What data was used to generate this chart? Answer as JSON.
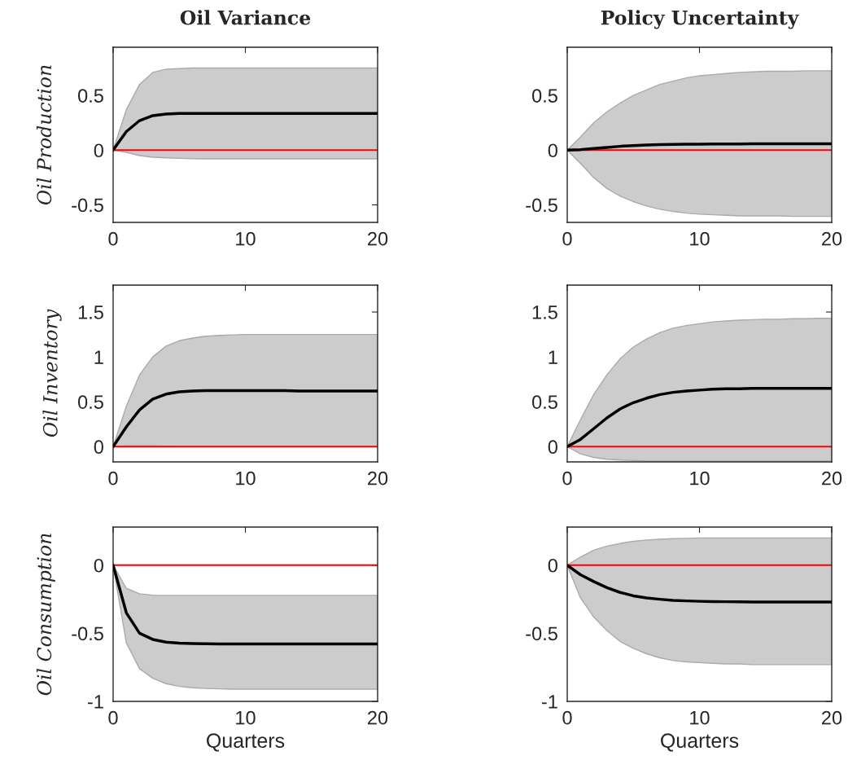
{
  "chart_data": [
    {
      "type": "line",
      "title": "Oil Variance",
      "ylabel": "Oil Production",
      "x": [
        0,
        1,
        2,
        3,
        4,
        5,
        6,
        7,
        8,
        9,
        10,
        11,
        12,
        13,
        14,
        15,
        16,
        17,
        18,
        19,
        20
      ],
      "xlim": [
        0,
        20
      ],
      "xticks": [
        0,
        10,
        20
      ],
      "ylim": [
        -0.66,
        0.94
      ],
      "yticks": [
        -0.5,
        0,
        0.5
      ],
      "series": [
        {
          "color": "#000000",
          "values": [
            0,
            0.17,
            0.27,
            0.315,
            0.33,
            0.335,
            0.335,
            0.335,
            0.335,
            0.335,
            0.335,
            0.335,
            0.335,
            0.335,
            0.335,
            0.335,
            0.335,
            0.335,
            0.335,
            0.335,
            0.335
          ],
          "upper": [
            0,
            0.37,
            0.6,
            0.71,
            0.74,
            0.745,
            0.75,
            0.75,
            0.75,
            0.75,
            0.75,
            0.75,
            0.75,
            0.75,
            0.75,
            0.75,
            0.75,
            0.75,
            0.75,
            0.75,
            0.75
          ],
          "lower": [
            0,
            -0.02,
            -0.05,
            -0.065,
            -0.07,
            -0.075,
            -0.078,
            -0.08,
            -0.08,
            -0.08,
            -0.08,
            -0.08,
            -0.08,
            -0.08,
            -0.08,
            -0.08,
            -0.08,
            -0.08,
            -0.08,
            -0.08,
            -0.08
          ]
        }
      ],
      "ref_lines": [
        {
          "axis": "y",
          "value": 0,
          "color": "#ff0000"
        }
      ]
    },
    {
      "type": "line",
      "title": "Policy Uncertainty",
      "x": [
        0,
        1,
        2,
        3,
        4,
        5,
        6,
        7,
        8,
        9,
        10,
        11,
        12,
        13,
        14,
        15,
        16,
        17,
        18,
        19,
        20
      ],
      "xlim": [
        0,
        20
      ],
      "xticks": [
        0,
        10,
        20
      ],
      "ylim": [
        -0.66,
        0.94
      ],
      "yticks": [
        -0.5,
        0,
        0.5
      ],
      "series": [
        {
          "color": "#000000",
          "values": [
            0,
            0.005,
            0.015,
            0.025,
            0.035,
            0.042,
            0.047,
            0.05,
            0.052,
            0.054,
            0.055,
            0.056,
            0.057,
            0.057,
            0.058,
            0.058,
            0.058,
            0.058,
            0.058,
            0.058,
            0.058
          ],
          "upper": [
            0,
            0.12,
            0.25,
            0.35,
            0.43,
            0.5,
            0.55,
            0.6,
            0.63,
            0.66,
            0.68,
            0.69,
            0.7,
            0.71,
            0.715,
            0.72,
            0.72,
            0.72,
            0.725,
            0.725,
            0.725
          ],
          "lower": [
            0,
            -0.12,
            -0.25,
            -0.35,
            -0.42,
            -0.47,
            -0.51,
            -0.54,
            -0.56,
            -0.575,
            -0.585,
            -0.59,
            -0.595,
            -0.6,
            -0.6,
            -0.6,
            -0.6,
            -0.605,
            -0.605,
            -0.605,
            -0.605
          ]
        }
      ],
      "ref_lines": [
        {
          "axis": "y",
          "value": 0,
          "color": "#ff0000"
        }
      ]
    },
    {
      "type": "line",
      "ylabel": "Oil Inventory",
      "x": [
        0,
        1,
        2,
        3,
        4,
        5,
        6,
        7,
        8,
        9,
        10,
        11,
        12,
        13,
        14,
        15,
        16,
        17,
        18,
        19,
        20
      ],
      "xlim": [
        0,
        20
      ],
      "xticks": [
        0,
        10,
        20
      ],
      "ylim": [
        -0.17,
        1.8
      ],
      "yticks": [
        0,
        0.5,
        1,
        1.5
      ],
      "series": [
        {
          "color": "#000000",
          "values": [
            0,
            0.22,
            0.41,
            0.53,
            0.585,
            0.61,
            0.62,
            0.625,
            0.625,
            0.625,
            0.625,
            0.625,
            0.625,
            0.625,
            0.62,
            0.62,
            0.62,
            0.62,
            0.62,
            0.62,
            0.62
          ],
          "upper": [
            0,
            0.45,
            0.8,
            1.0,
            1.12,
            1.18,
            1.21,
            1.23,
            1.24,
            1.245,
            1.25,
            1.25,
            1.25,
            1.25,
            1.25,
            1.25,
            1.25,
            1.25,
            1.25,
            1.25,
            1.25
          ],
          "lower": [
            0,
            0.01,
            0.01,
            0.01,
            0.005,
            0,
            0,
            0,
            0,
            0,
            0,
            0,
            0,
            0,
            0,
            0,
            0,
            0,
            0,
            0,
            0
          ]
        }
      ],
      "ref_lines": [
        {
          "axis": "y",
          "value": 0,
          "color": "#ff0000"
        }
      ]
    },
    {
      "type": "line",
      "x": [
        0,
        1,
        2,
        3,
        4,
        5,
        6,
        7,
        8,
        9,
        10,
        11,
        12,
        13,
        14,
        15,
        16,
        17,
        18,
        19,
        20
      ],
      "xlim": [
        0,
        20
      ],
      "xticks": [
        0,
        10,
        20
      ],
      "ylim": [
        -0.17,
        1.8
      ],
      "yticks": [
        0,
        0.5,
        1,
        1.5
      ],
      "series": [
        {
          "color": "#000000",
          "values": [
            0,
            0.08,
            0.2,
            0.32,
            0.42,
            0.49,
            0.54,
            0.58,
            0.605,
            0.62,
            0.63,
            0.64,
            0.645,
            0.645,
            0.65,
            0.65,
            0.65,
            0.65,
            0.65,
            0.65,
            0.65
          ],
          "upper": [
            0,
            0.3,
            0.58,
            0.8,
            0.98,
            1.11,
            1.2,
            1.27,
            1.32,
            1.35,
            1.37,
            1.39,
            1.4,
            1.41,
            1.415,
            1.42,
            1.42,
            1.425,
            1.425,
            1.43,
            1.43
          ],
          "lower": [
            0,
            -0.08,
            -0.12,
            -0.14,
            -0.15,
            -0.155,
            -0.16,
            -0.16,
            -0.16,
            -0.16,
            -0.16,
            -0.16,
            -0.16,
            -0.16,
            -0.16,
            -0.16,
            -0.16,
            -0.16,
            -0.16,
            -0.16,
            -0.16
          ]
        }
      ],
      "ref_lines": [
        {
          "axis": "y",
          "value": 0,
          "color": "#ff0000"
        }
      ]
    },
    {
      "type": "line",
      "ylabel": "Oil Consumption",
      "xlabel": "Quarters",
      "x": [
        0,
        1,
        2,
        3,
        4,
        5,
        6,
        7,
        8,
        9,
        10,
        11,
        12,
        13,
        14,
        15,
        16,
        17,
        18,
        19,
        20
      ],
      "xlim": [
        0,
        20
      ],
      "xticks": [
        0,
        10,
        20
      ],
      "ylim": [
        -1,
        0.28
      ],
      "yticks": [
        -1,
        -0.5,
        0
      ],
      "series": [
        {
          "color": "#000000",
          "values": [
            0,
            -0.35,
            -0.5,
            -0.545,
            -0.565,
            -0.572,
            -0.575,
            -0.577,
            -0.578,
            -0.578,
            -0.578,
            -0.578,
            -0.578,
            -0.578,
            -0.578,
            -0.578,
            -0.578,
            -0.578,
            -0.578,
            -0.578,
            -0.578
          ],
          "upper": [
            0,
            -0.17,
            -0.21,
            -0.22,
            -0.222,
            -0.222,
            -0.222,
            -0.222,
            -0.222,
            -0.222,
            -0.222,
            -0.222,
            -0.222,
            -0.222,
            -0.222,
            -0.222,
            -0.222,
            -0.222,
            -0.222,
            -0.222,
            -0.222
          ],
          "lower": [
            0,
            -0.57,
            -0.76,
            -0.83,
            -0.87,
            -0.89,
            -0.9,
            -0.905,
            -0.908,
            -0.91,
            -0.91,
            -0.91,
            -0.91,
            -0.91,
            -0.91,
            -0.91,
            -0.91,
            -0.91,
            -0.91,
            -0.91,
            -0.91
          ]
        }
      ],
      "ref_lines": [
        {
          "axis": "y",
          "value": 0,
          "color": "#ff0000"
        }
      ]
    },
    {
      "type": "line",
      "xlabel": "Quarters",
      "x": [
        0,
        1,
        2,
        3,
        4,
        5,
        6,
        7,
        8,
        9,
        10,
        11,
        12,
        13,
        14,
        15,
        16,
        17,
        18,
        19,
        20
      ],
      "xlim": [
        0,
        20
      ],
      "xticks": [
        0,
        10,
        20
      ],
      "ylim": [
        -1,
        0.28
      ],
      "yticks": [
        -1,
        -0.5,
        0
      ],
      "series": [
        {
          "color": "#000000",
          "values": [
            0,
            -0.07,
            -0.12,
            -0.165,
            -0.2,
            -0.225,
            -0.24,
            -0.25,
            -0.258,
            -0.262,
            -0.265,
            -0.267,
            -0.268,
            -0.269,
            -0.27,
            -0.27,
            -0.27,
            -0.27,
            -0.27,
            -0.27,
            -0.27
          ],
          "upper": [
            0,
            0.06,
            0.11,
            0.14,
            0.16,
            0.175,
            0.185,
            0.19,
            0.195,
            0.197,
            0.2,
            0.2,
            0.2,
            0.2,
            0.2,
            0.2,
            0.2,
            0.2,
            0.2,
            0.2,
            0.2
          ],
          "lower": [
            0,
            -0.24,
            -0.38,
            -0.48,
            -0.56,
            -0.61,
            -0.65,
            -0.68,
            -0.7,
            -0.71,
            -0.715,
            -0.72,
            -0.725,
            -0.725,
            -0.73,
            -0.73,
            -0.73,
            -0.73,
            -0.73,
            -0.73,
            -0.73
          ]
        }
      ],
      "ref_lines": [
        {
          "axis": "y",
          "value": 0,
          "color": "#ff0000"
        }
      ]
    }
  ]
}
